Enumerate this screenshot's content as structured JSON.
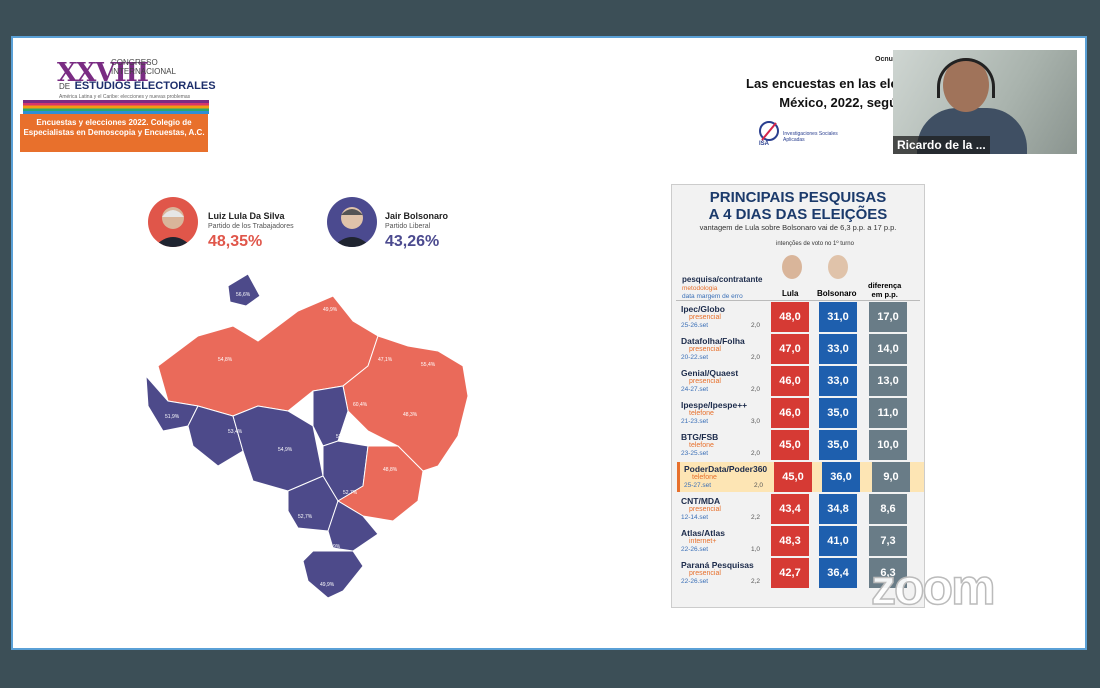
{
  "logo": {
    "number": "XXVIII",
    "line1": "CONGRESO",
    "line2": "INTERNACIONAL",
    "line3": "DE",
    "line4": "ESTUDIOS ELECTORALES",
    "tagline": "América Latina y el Caribe: elecciones y nuevas problemas",
    "box_text": "Encuestas y elecciones 2022. Colegio de Especialistas en Demoscopia y Encuestas, A.C."
  },
  "slide": {
    "top_small": "Ocnu",
    "title_line1": "Las encuestas en las elec",
    "title_line2": "México, 2022, según",
    "brand_text": "Investigaciones Sociales Aplicadas"
  },
  "video": {
    "name": "Ricardo de la ..."
  },
  "candidates": [
    {
      "name": "Luiz Lula Da Silva",
      "party": "Partido de los Trabajadores",
      "pct": "48,35%",
      "color": "#e0564a"
    },
    {
      "name": "Jair Bolsonaro",
      "party": "Partido Liberal",
      "pct": "43,26%",
      "color": "#4b4a8f"
    }
  ],
  "colors": {
    "red": "#ea6a5a",
    "blue": "#4d4a8a",
    "lula_col": "#d63a34",
    "bolso_col": "#1e5fae",
    "diff_col": "#697c87",
    "highlight": "#fde5b4"
  },
  "table": {
    "title1": "PRINCIPAIS PESQUISAS",
    "title2": "A 4 DIAS DAS ELEIÇÕES",
    "subtitle": "vantagem de Lula sobre Bolsonaro vai de 6,3 p.p. a 17 p.p.",
    "intent": "intenções de voto no 1º turno",
    "head_left1": "pesquisa/contratante",
    "head_left2": "metodologia",
    "head_left3": "data   margem de erro",
    "col_lula": "Lula",
    "col_bolso": "Bolsonaro",
    "col_diff1": "diferença",
    "col_diff2": "em p.p.",
    "rows": [
      {
        "name": "Ipec/Globo",
        "method": "presencial",
        "date": "25-26.set",
        "err": "2,0",
        "lula": "48,0",
        "bolso": "31,0",
        "diff": "17,0"
      },
      {
        "name": "Datafolha/Folha",
        "method": "presencial",
        "date": "20-22.set",
        "err": "2,0",
        "lula": "47,0",
        "bolso": "33,0",
        "diff": "14,0"
      },
      {
        "name": "Genial/Quaest",
        "method": "presencial",
        "date": "24-27.set",
        "err": "2,0",
        "lula": "46,0",
        "bolso": "33,0",
        "diff": "13,0"
      },
      {
        "name": "Ipespe/Ipespe++",
        "method": "telefone",
        "date": "21-23.set",
        "err": "3,0",
        "lula": "46,0",
        "bolso": "35,0",
        "diff": "11,0"
      },
      {
        "name": "BTG/FSB",
        "method": "telefone",
        "date": "23-25.set",
        "err": "2,0",
        "lula": "45,0",
        "bolso": "35,0",
        "diff": "10,0"
      },
      {
        "name": "PoderData/Poder360",
        "method": "telefone",
        "date": "25-27.set",
        "err": "2,0",
        "lula": "45,0",
        "bolso": "36,0",
        "diff": "9,0"
      },
      {
        "name": "CNT/MDA",
        "method": "presencial",
        "date": "12-14.set",
        "err": "2,2",
        "lula": "43,4",
        "bolso": "34,8",
        "diff": "8,6"
      },
      {
        "name": "Atlas/Atlas",
        "method": "internet+",
        "date": "22-26.set",
        "err": "1,0",
        "lula": "48,3",
        "bolso": "41,0",
        "diff": "7,3"
      },
      {
        "name": "Paraná Pesquisas",
        "method": "presencial",
        "date": "22-26.set",
        "err": "2,2",
        "lula": "42,7",
        "bolso": "36,4",
        "diff": "6,3"
      }
    ]
  },
  "map_labels": [
    "56,6%",
    "49,9%",
    "54,8%",
    "47,1%",
    "55,4%",
    "48,3%",
    "60,4%",
    "52,2%",
    "48,8%",
    "54,9%",
    "53,4%",
    "52,7%",
    "52,7%",
    "55,9%",
    "49,9%",
    "51,9%"
  ],
  "zoom_watermark": "zoom"
}
